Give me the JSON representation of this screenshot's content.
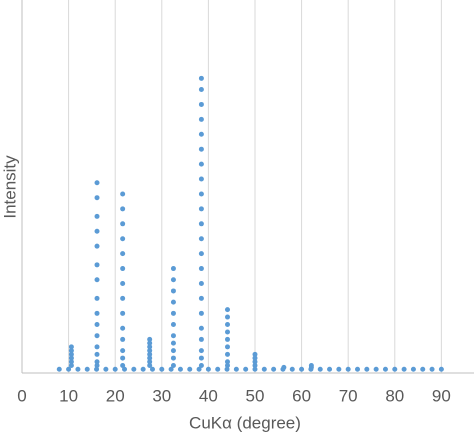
{
  "chart_data": {
    "type": "scatter",
    "x_label": "CuKα (degree)",
    "y_label": "Intensity",
    "color": "#5b9bd5",
    "x": [
      10.6,
      10.6,
      10.6,
      10.6,
      10.6,
      10.6,
      16.1,
      16.1,
      16.1,
      16.1,
      16.1,
      16.1,
      16.1,
      16.1,
      16.1,
      16.1,
      16.1,
      16.1,
      16.1,
      16.1,
      16.1,
      21.6,
      21.6,
      21.6,
      21.6,
      21.6,
      21.6,
      21.6,
      21.6,
      21.6,
      21.6,
      21.6,
      21.6,
      21.6,
      21.6,
      27.4,
      27.4,
      27.4,
      27.4,
      27.4,
      27.4,
      27.4,
      27.4,
      32.5,
      32.5,
      32.5,
      32.5,
      32.5,
      32.5,
      32.5,
      32.5,
      32.5,
      32.5,
      32.5,
      38.5,
      38.5,
      38.5,
      38.5,
      38.5,
      38.5,
      38.5,
      38.5,
      38.5,
      38.5,
      38.5,
      38.5,
      38.5,
      38.5,
      38.5,
      38.5,
      38.5,
      38.5,
      38.5,
      38.5,
      38.5,
      38.5,
      44.1,
      44.1,
      44.1,
      44.1,
      44.1,
      44.1,
      44.1,
      44.1,
      44.1,
      50.0,
      50.0,
      50.0,
      50.0,
      56.2,
      62.1,
      62.1,
      8,
      10,
      12,
      14,
      16,
      18,
      20,
      22,
      24,
      26,
      28,
      30,
      32,
      34,
      36,
      38,
      40,
      42,
      44,
      46,
      48,
      50,
      52,
      54,
      56,
      58,
      60,
      62,
      64,
      66,
      68,
      70,
      72,
      74,
      76,
      78,
      80,
      82,
      84,
      86,
      88,
      90
    ],
    "values": [
      7,
      6,
      5,
      4,
      3,
      2,
      51,
      47,
      42,
      38,
      34,
      29,
      25,
      20,
      16,
      13,
      10,
      7,
      5,
      3,
      2,
      48,
      44,
      40,
      36,
      32,
      28,
      24,
      20,
      16,
      12,
      9,
      6,
      4,
      2,
      9,
      8,
      7,
      6,
      5,
      4,
      3,
      2,
      28,
      25,
      22,
      19,
      16,
      13,
      10,
      8,
      6,
      4,
      2,
      79,
      76,
      72,
      68,
      64,
      60,
      56,
      52,
      48,
      44,
      40,
      36,
      32,
      28,
      24,
      20,
      16,
      12,
      9,
      6,
      4,
      2,
      17,
      15,
      13,
      11,
      9,
      7,
      5,
      3,
      2,
      5,
      4,
      3,
      2,
      1.5,
      2,
      1.5,
      1,
      1,
      1,
      1,
      1,
      1,
      1,
      1,
      1,
      1,
      1,
      1,
      1,
      1,
      1,
      1,
      1,
      1,
      1,
      1,
      1,
      1,
      1,
      1,
      1,
      1,
      1,
      1,
      1,
      1,
      1,
      1,
      1,
      1,
      1,
      1,
      1,
      1,
      1,
      1,
      1,
      1
    ],
    "xlim": [
      0,
      97
    ],
    "xticks": [
      0,
      10,
      20,
      30,
      40,
      50,
      60,
      70,
      80,
      90
    ],
    "ylim": [
      0,
      100
    ],
    "grid": true
  }
}
